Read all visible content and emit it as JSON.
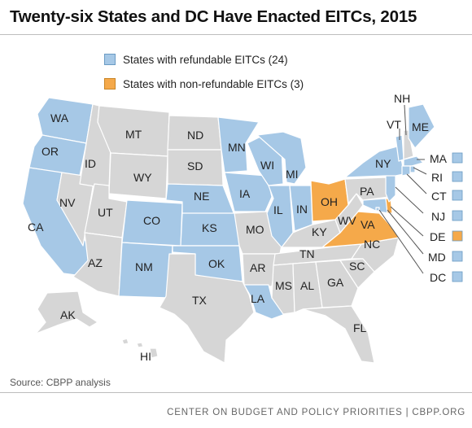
{
  "title": "Twenty-six States and DC Have Enacted EITCs, 2015",
  "legend": {
    "refundable": "States with refundable EITCs (24)",
    "nonrefundable": "States with non-refundable EITCs (3)"
  },
  "colors": {
    "refundable": "#a6c8e6",
    "nonrefundable": "#f5a94a",
    "none": "#d6d6d6",
    "outline": "#ffffff"
  },
  "states": {
    "WA": "refundable",
    "OR": "refundable",
    "CA": "refundable",
    "NV": "none",
    "ID": "none",
    "MT": "none",
    "WY": "none",
    "UT": "none",
    "AZ": "none",
    "CO": "refundable",
    "NM": "refundable",
    "ND": "none",
    "SD": "none",
    "NE": "refundable",
    "KS": "refundable",
    "OK": "refundable",
    "TX": "none",
    "MN": "refundable",
    "IA": "refundable",
    "MO": "none",
    "AR": "none",
    "LA": "refundable",
    "WI": "refundable",
    "IL": "refundable",
    "MI": "refundable",
    "IN": "refundable",
    "OH": "nonrefundable",
    "KY": "none",
    "TN": "none",
    "MS": "none",
    "AL": "none",
    "GA": "none",
    "FL": "none",
    "SC": "none",
    "NC": "none",
    "VA": "nonrefundable",
    "WV": "none",
    "PA": "none",
    "NY": "refundable",
    "VT": "refundable",
    "NH": "none",
    "ME": "refundable",
    "MA": "refundable",
    "RI": "refundable",
    "CT": "refundable",
    "NJ": "refundable",
    "DE": "nonrefundable",
    "MD": "refundable",
    "DC": "refundable",
    "AK": "none",
    "HI": "none"
  },
  "labels": {
    "WA": "WA",
    "OR": "OR",
    "CA": "CA",
    "NV": "NV",
    "ID": "ID",
    "MT": "MT",
    "WY": "WY",
    "UT": "UT",
    "AZ": "AZ",
    "CO": "CO",
    "NM": "NM",
    "ND": "ND",
    "SD": "SD",
    "NE": "NE",
    "KS": "KS",
    "OK": "OK",
    "TX": "TX",
    "MN": "MN",
    "IA": "IA",
    "MO": "MO",
    "AR": "AR",
    "LA": "LA",
    "WI": "WI",
    "IL": "IL",
    "MI": "MI",
    "IN": "IN",
    "OH": "OH",
    "KY": "KY",
    "TN": "TN",
    "MS": "MS",
    "AL": "AL",
    "GA": "GA",
    "FL": "FL",
    "SC": "SC",
    "NC": "NC",
    "VA": "VA",
    "WV": "WV",
    "PA": "PA",
    "NY": "NY",
    "VT": "VT",
    "NH": "NH",
    "ME": "ME",
    "MA": "MA",
    "RI": "RI",
    "CT": "CT",
    "NJ": "NJ",
    "DE": "DE",
    "MD": "MD",
    "DC": "DC",
    "AK": "AK",
    "HI": "HI"
  },
  "source": "Source: CBPP analysis",
  "footer": "CENTER ON BUDGET AND POLICY PRIORITIES | CBPP.ORG"
}
